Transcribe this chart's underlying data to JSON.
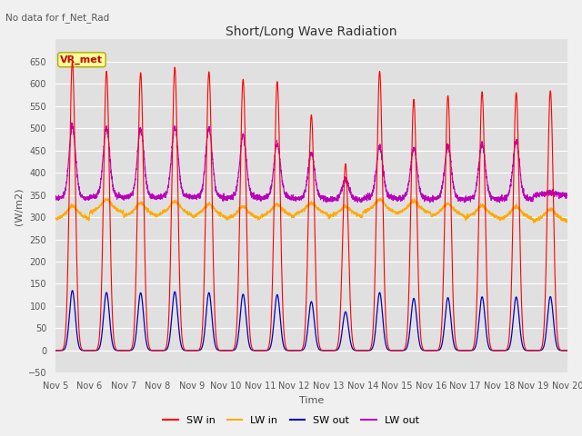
{
  "title": "Short/Long Wave Radiation",
  "subtitle": "No data for f_Net_Rad",
  "xlabel": "Time",
  "ylabel": "(W/m2)",
  "ylim": [
    -50,
    700
  ],
  "yticks": [
    -50,
    0,
    50,
    100,
    150,
    200,
    250,
    300,
    350,
    400,
    450,
    500,
    550,
    600,
    650
  ],
  "xlim_start": 5,
  "xlim_end": 20,
  "xtick_labels": [
    "Nov 5",
    "Nov 6",
    "Nov 7",
    "Nov 8",
    "Nov 9",
    "Nov 10",
    "Nov 11",
    "Nov 12",
    "Nov 13",
    "Nov 14",
    "Nov 15",
    "Nov 16",
    "Nov 17",
    "Nov 18",
    "Nov 19",
    "Nov 20"
  ],
  "legend_labels": [
    "SW in",
    "LW in",
    "SW out",
    "LW out"
  ],
  "legend_colors": [
    "#ff0000",
    "#ffaa00",
    "#0000bb",
    "#bb00bb"
  ],
  "station_label": "VR_met",
  "station_label_color": "#cc0000",
  "station_box_facecolor": "#ffff99",
  "station_box_edgecolor": "#aaaa00",
  "plot_bg_color": "#e0e0e0",
  "fig_bg_color": "#f0f0f0",
  "grid_color": "#ffffff",
  "sw_in_peaks": [
    650,
    628,
    625,
    637,
    627,
    610,
    605,
    530,
    420,
    628,
    565,
    573,
    582,
    580,
    584
  ],
  "lw_out_peaks": [
    500,
    495,
    495,
    498,
    495,
    478,
    460,
    440,
    380,
    455,
    450,
    455,
    460,
    465,
    350
  ],
  "lw_in_base": 290,
  "sw_out_peak": 135,
  "lw_out_base": 340,
  "days": 15,
  "samples_per_day": 240
}
